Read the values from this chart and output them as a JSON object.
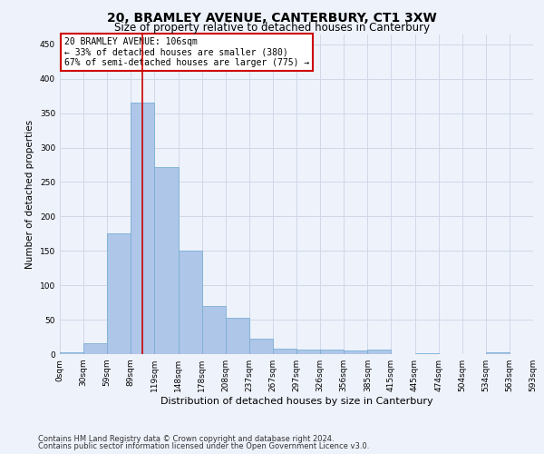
{
  "title": "20, BRAMLEY AVENUE, CANTERBURY, CT1 3XW",
  "subtitle": "Size of property relative to detached houses in Canterbury",
  "xlabel": "Distribution of detached houses by size in Canterbury",
  "ylabel": "Number of detached properties",
  "footnote1": "Contains HM Land Registry data © Crown copyright and database right 2024.",
  "footnote2": "Contains public sector information licensed under the Open Government Licence v3.0.",
  "bar_values": [
    2,
    16,
    175,
    365,
    272,
    150,
    70,
    53,
    22,
    8,
    7,
    6,
    5,
    6,
    0,
    1,
    0,
    0,
    2
  ],
  "bar_color": "#aec6e8",
  "bar_edgecolor": "#7aafd4",
  "grid_color": "#d0d8e8",
  "background_color": "#eef2fb",
  "vline_color": "#cc0000",
  "annotation_text": "20 BRAMLEY AVENUE: 106sqm\n← 33% of detached houses are smaller (380)\n67% of semi-detached houses are larger (775) →",
  "annotation_box_color": "#ffffff",
  "annotation_box_edgecolor": "#cc0000",
  "ylim": [
    0,
    465
  ],
  "yticks": [
    0,
    50,
    100,
    150,
    200,
    250,
    300,
    350,
    400,
    450
  ],
  "xtick_labels": [
    "0sqm",
    "30sqm",
    "59sqm",
    "89sqm",
    "119sqm",
    "148sqm",
    "178sqm",
    "208sqm",
    "237sqm",
    "267sqm",
    "297sqm",
    "326sqm",
    "356sqm",
    "385sqm",
    "415sqm",
    "445sqm",
    "474sqm",
    "504sqm",
    "534sqm",
    "563sqm",
    "593sqm"
  ],
  "title_fontsize": 10,
  "subtitle_fontsize": 8.5,
  "ylabel_fontsize": 7.5,
  "xlabel_fontsize": 8,
  "tick_fontsize": 6.5,
  "annotation_fontsize": 7,
  "footnote_fontsize": 6
}
